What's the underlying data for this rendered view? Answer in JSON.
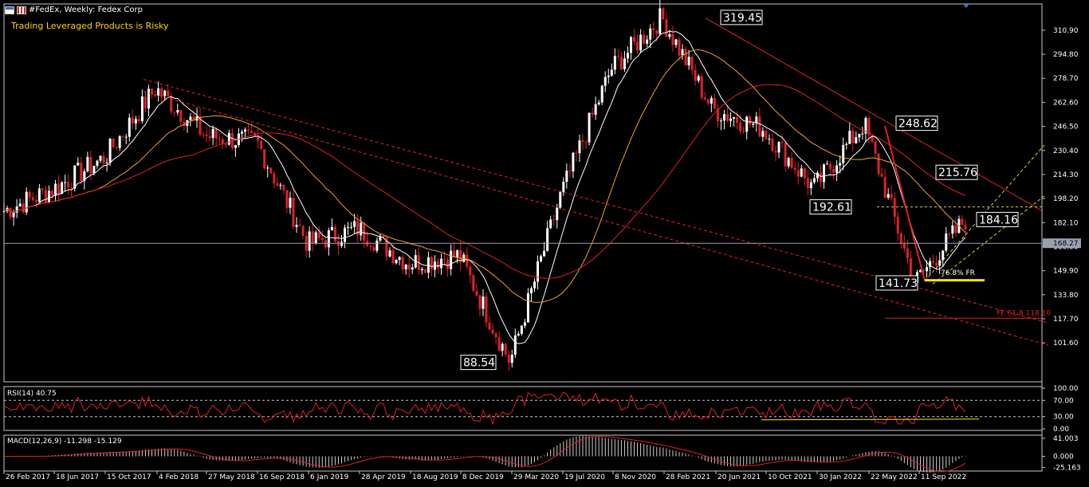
{
  "header": {
    "title": "#FedEx, Weekly:  Fedex Corp",
    "warning": "Trading Leveraged Products is Risky"
  },
  "colors": {
    "background": "#000000",
    "bull": "#ffffff",
    "bear": "#e0202a",
    "ma_fast": "#ffffff",
    "ma_mid": "#f0a030",
    "ma_slow": "#e0202a",
    "trend": "#e0202a",
    "channel": "#d4d44a",
    "fib": "#ffe600",
    "grid": "#c8c8c8"
  },
  "chart_data": [
    {
      "type": "candlestick",
      "title": "#FedEx, Weekly:  Fedex Corp",
      "ylim": [
        88.54,
        319.45
      ],
      "y_ticks": [
        310.9,
        294.8,
        278.7,
        262.6,
        246.5,
        230.4,
        214.3,
        198.2,
        182.1,
        166.0,
        149.9,
        133.8,
        117.7,
        101.6
      ],
      "x_ticks": [
        "26 Feb 2017",
        "18 Jun 2017",
        "15 Oct 2017",
        "4 Feb 2018",
        "27 May 2018",
        "16 Sep 2018",
        "6 Jan 2019",
        "28 Apr 2019",
        "18 Aug 2019",
        "8 Dec 2019",
        "29 Mar 2020",
        "19 Jul 2020",
        "8 Nov 2020",
        "28 Feb 2021",
        "20 Jun 2021",
        "10 Oct 2021",
        "30 Jan 2022",
        "22 May 2022",
        "11 Sep 2022"
      ],
      "current_price": "168.27",
      "price_path": [
        [
          "26 Feb 2017",
          190
        ],
        [
          "18 Jun 2017",
          205
        ],
        [
          "15 Oct 2017",
          226
        ],
        [
          "4 Feb 2018",
          272
        ],
        [
          "27 May 2018",
          240
        ],
        [
          "16 Sep 2018",
          236
        ],
        [
          "6 Jan 2019",
          168
        ],
        [
          "28 Apr 2019",
          178
        ],
        [
          "18 Aug 2019",
          155
        ],
        [
          "8 Dec 2019",
          160
        ],
        [
          "29 Mar 2020",
          88.54
        ],
        [
          "19 Jul 2020",
          200
        ],
        [
          "8 Nov 2020",
          285
        ],
        [
          "28 Feb 2021",
          319.45
        ],
        [
          "20 Jun 2021",
          258
        ],
        [
          "10 Oct 2021",
          245
        ],
        [
          "30 Jan 2022",
          205
        ],
        [
          "22 May 2022",
          248.62
        ],
        [
          "11 Sep 2022",
          141.73
        ],
        [
          "end",
          184.16
        ]
      ],
      "annotations": [
        {
          "text": "319.45",
          "date": "28 Feb 2021"
        },
        {
          "text": "248.62",
          "date": "22 May 2022"
        },
        {
          "text": "215.76",
          "date": "11 Sep 2022"
        },
        {
          "text": "192.61",
          "date": "22 May 2022"
        },
        {
          "text": "184.16",
          "date": "end"
        },
        {
          "text": "141.73",
          "date": "11 Sep 2022"
        },
        {
          "text": "88.54",
          "date": "29 Mar 2020"
        },
        {
          "text": "76.8% FR",
          "date": "11 Sep 2022"
        },
        {
          "text": "FE 61.8 118.10",
          "date": "end"
        }
      ]
    },
    {
      "type": "line",
      "title": "RSI(14) 40.75",
      "ylim": [
        0,
        100
      ],
      "y_ticks": [
        "100.00",
        "70.00",
        "30.00",
        "0.00"
      ],
      "last": 40.75
    },
    {
      "type": "bar",
      "title": "MACD(12,26,9) -11.298 -15.129",
      "y_ticks": [
        "41.003",
        "0.000",
        "-25.163"
      ],
      "macd": -11.298,
      "signal": -15.129
    }
  ]
}
